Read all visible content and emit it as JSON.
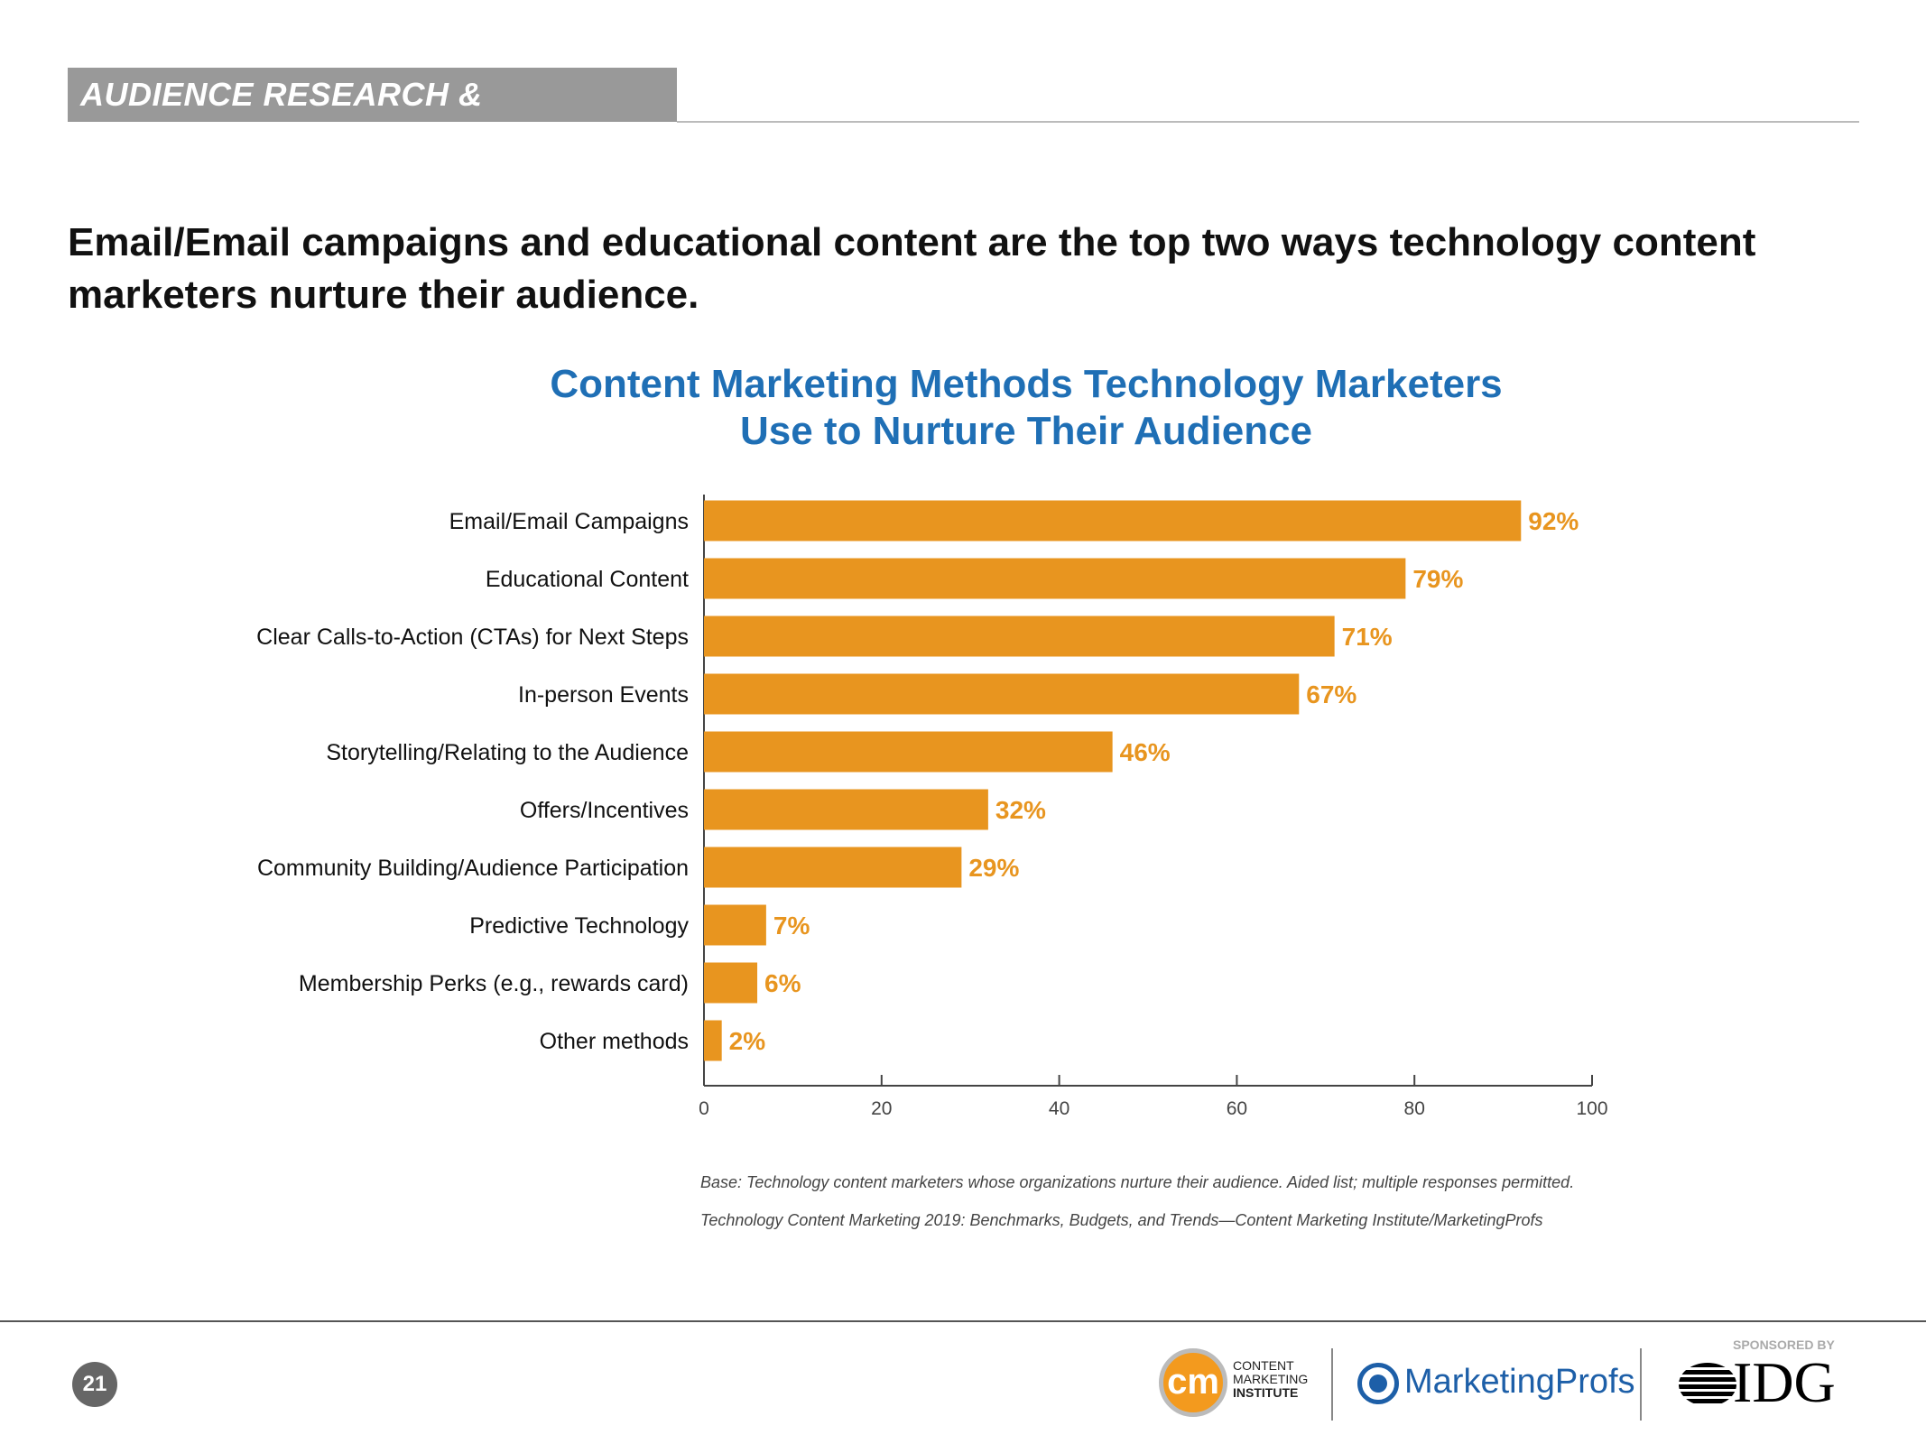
{
  "section_tag": "AUDIENCE RESEARCH & NURTURING",
  "headline": "Email/Email campaigns and educational content are the top two ways technology content marketers nurture their audience.",
  "chart_data": {
    "type": "bar",
    "orientation": "horizontal",
    "title": "Content Marketing Methods Technology Marketers Use to Nurture Their Audience",
    "title_lines": [
      "Content Marketing Methods Technology Marketers",
      "Use to Nurture Their Audience"
    ],
    "categories": [
      "Email/Email Campaigns",
      "Educational Content",
      "Clear Calls-to-Action (CTAs) for Next Steps",
      "In-person Events",
      "Storytelling/Relating to the Audience",
      "Offers/Incentives",
      "Community Building/Audience Participation",
      "Predictive Technology",
      "Membership Perks (e.g., rewards card)",
      "Other methods"
    ],
    "values": [
      92,
      79,
      71,
      67,
      46,
      32,
      29,
      7,
      6,
      2
    ],
    "data_labels": [
      "92%",
      "79%",
      "71%",
      "67%",
      "46%",
      "32%",
      "29%",
      "7%",
      "6%",
      "2%"
    ],
    "xlim": [
      0,
      100
    ],
    "xticks": [
      0,
      20,
      40,
      60,
      80,
      100
    ],
    "bar_color": "#e8951f",
    "label_color": "#e8951f",
    "grid": false
  },
  "footnotes": {
    "base": "Base: Technology content marketers whose organizations nurture their audience. Aided list; multiple responses permitted.",
    "source": "Technology Content Marketing 2019: Benchmarks, Budgets, and Trends—Content Marketing Institute/MarketingProfs"
  },
  "footer": {
    "page_number": "21",
    "cmi_mark": "cm",
    "cmi_lines": [
      "CONTENT",
      "MARKETING",
      "INSTITUTE"
    ],
    "mprofs": "MarketingProfs",
    "sponsored_by": "SPONSORED BY",
    "idg": "IDG"
  }
}
